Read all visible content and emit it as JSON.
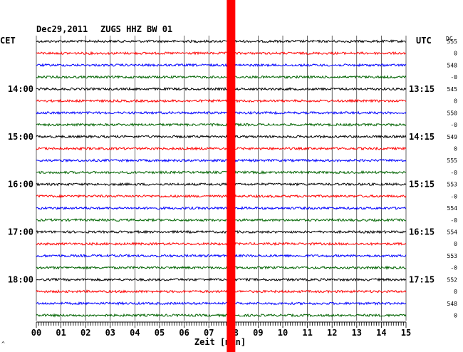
{
  "header": {
    "date": "Dec29,2011",
    "station": "ZUGS HHZ BW 01",
    "left_zone": "CET",
    "right_zone": "UTC",
    "dc_label": "DC"
  },
  "chart_data": {
    "type": "line",
    "title": "Dec29,2011   ZUGS HHZ BW 01",
    "xlabel": "Zeit [min]",
    "xlim": [
      0,
      15
    ],
    "x_ticks": [
      "00",
      "01",
      "02",
      "03",
      "04",
      "05",
      "06",
      "07",
      "08",
      "09",
      "10",
      "11",
      "12",
      "13",
      "14",
      "15"
    ],
    "trace_colors": [
      "#000000",
      "#ff0000",
      "#0000ff",
      "#006400"
    ],
    "trace_count": 24,
    "row_labels_left": [
      {
        "row": 4,
        "label": "14:00"
      },
      {
        "row": 8,
        "label": "15:00"
      },
      {
        "row": 12,
        "label": "16:00"
      },
      {
        "row": 16,
        "label": "17:00"
      },
      {
        "row": 20,
        "label": "18:00"
      }
    ],
    "row_labels_right": [
      {
        "row": 4,
        "label": "13:15"
      },
      {
        "row": 8,
        "label": "14:15"
      },
      {
        "row": 12,
        "label": "15:15"
      },
      {
        "row": 16,
        "label": "16:15"
      },
      {
        "row": 20,
        "label": "17:15"
      }
    ],
    "dc_values": [
      "555",
      "0",
      "548",
      "-0",
      "545",
      "0",
      "550",
      "-0",
      "549",
      "0",
      "555",
      "-0",
      "553",
      "-0",
      "554",
      "-0",
      "554",
      "0",
      "553",
      "-0",
      "552",
      "0",
      "548",
      "0"
    ],
    "marker": {
      "x_minute": 7.9,
      "color": "#ff0000"
    }
  },
  "footer_mark": "^"
}
